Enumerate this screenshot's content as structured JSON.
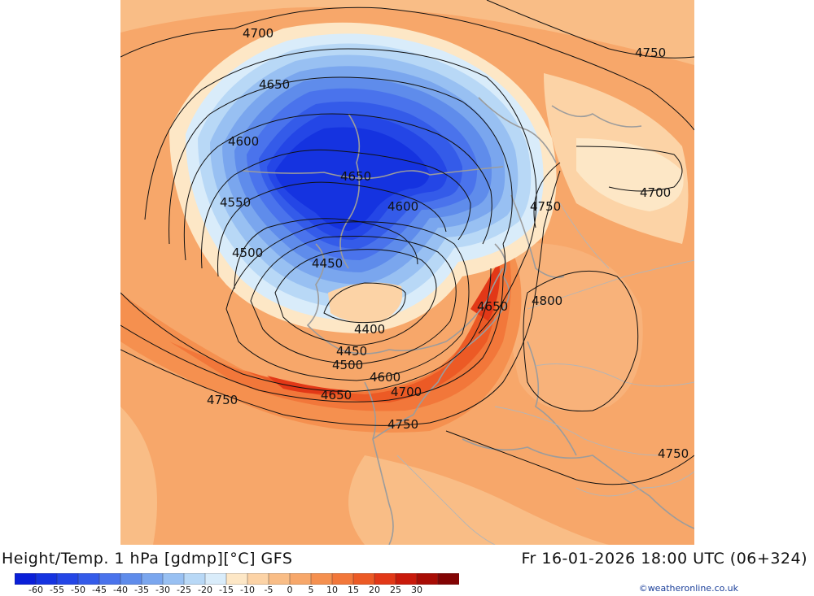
{
  "header": {
    "title": "Height/Temp. 1 hPa [gdmp][°C] GFS",
    "valid_time": "Fr 16-01-2026 18:00 UTC (06+324)"
  },
  "legend": {
    "ticks": [
      "-60",
      "-55",
      "-50",
      "-45",
      "-40",
      "-35",
      "-30",
      "-25",
      "-20",
      "-15",
      "-10",
      "-5",
      "0",
      "5",
      "10",
      "15",
      "20",
      "25",
      "30"
    ],
    "colors": [
      "#0a1fd8",
      "#1533e0",
      "#2446e6",
      "#345be9",
      "#4a73ec",
      "#5f8ceb",
      "#7aa6ee",
      "#98c0f2",
      "#b8d8f6",
      "#d9ecfa",
      "#fde7c6",
      "#fcd3a6",
      "#f9bd86",
      "#f7a76a",
      "#f5904f",
      "#f2773a",
      "#ec5a25",
      "#e23817",
      "#c91a0b",
      "#a80c05",
      "#820404"
    ]
  },
  "credit": "©weatheronline.co.uk",
  "contour_labels": [
    {
      "text": "4700",
      "id": "4700-nw"
    },
    {
      "text": "4750",
      "id": "4750-ne"
    },
    {
      "text": "4650",
      "id": "4650-n"
    },
    {
      "text": "4600",
      "id": "4600-w"
    },
    {
      "text": "4650",
      "id": "4650-center"
    },
    {
      "text": "4550",
      "id": "4550-w"
    },
    {
      "text": "4600",
      "id": "4600-center"
    },
    {
      "text": "4750",
      "id": "4750-e"
    },
    {
      "text": "4700",
      "id": "4700-e"
    },
    {
      "text": "4500",
      "id": "4500-w"
    },
    {
      "text": "4450",
      "id": "4450-center"
    },
    {
      "text": "4650",
      "id": "4650-se"
    },
    {
      "text": "4800",
      "id": "4800-e"
    },
    {
      "text": "4400",
      "id": "4400-low"
    },
    {
      "text": "4450",
      "id": "4450-s"
    },
    {
      "text": "4500",
      "id": "4500-s"
    },
    {
      "text": "4600",
      "id": "4600-s"
    },
    {
      "text": "4700",
      "id": "4700-s"
    },
    {
      "text": "4650",
      "id": "4650-s"
    },
    {
      "text": "4750",
      "id": "4750-sw"
    },
    {
      "text": "4750",
      "id": "4750-s"
    },
    {
      "text": "4750",
      "id": "4750-se"
    }
  ]
}
